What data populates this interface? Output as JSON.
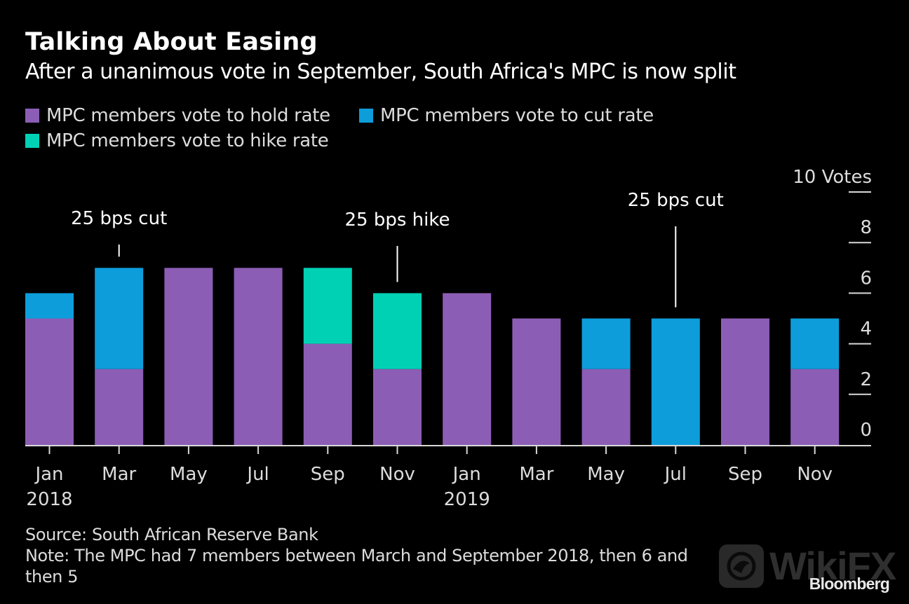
{
  "header": {
    "title": "Talking About Easing",
    "subtitle": "After a unanimous vote in September, South Africa's MPC is now split"
  },
  "legend": [
    {
      "label": "MPC members vote to hold rate",
      "color": "#8c5db5",
      "key": "hold"
    },
    {
      "label": "MPC members vote to cut rate",
      "color": "#0d9ddb",
      "key": "cut"
    },
    {
      "label": "MPC members vote to hike rate",
      "color": "#00d1b5",
      "key": "hike"
    }
  ],
  "footer": {
    "source": "Source: South African Reserve Bank",
    "note": "Note: The MPC had 7 members between March and September 2018, then 6 and then 5",
    "brand": "Bloomberg",
    "watermark": "WikiFX"
  },
  "chart_data": {
    "type": "bar",
    "stacked": true,
    "title": "Talking About Easing",
    "subtitle": "After a unanimous vote in September, South Africa's MPC is now split",
    "categories": [
      "Jan 2018",
      "Mar 2018",
      "May 2018",
      "Jul 2018",
      "Sep 2018",
      "Nov 2018",
      "Jan 2019",
      "Mar 2019",
      "May 2019",
      "Jul 2019",
      "Sep 2019",
      "Nov 2019"
    ],
    "tick_labels": [
      {
        "month": "Jan",
        "year": "2018"
      },
      {
        "month": "Mar",
        "year": ""
      },
      {
        "month": "May",
        "year": ""
      },
      {
        "month": "Jul",
        "year": ""
      },
      {
        "month": "Sep",
        "year": ""
      },
      {
        "month": "Nov",
        "year": ""
      },
      {
        "month": "Jan",
        "year": "2019"
      },
      {
        "month": "Mar",
        "year": ""
      },
      {
        "month": "May",
        "year": ""
      },
      {
        "month": "Jul",
        "year": ""
      },
      {
        "month": "Sep",
        "year": ""
      },
      {
        "month": "Nov",
        "year": ""
      }
    ],
    "series": [
      {
        "name": "MPC members vote to hold rate",
        "key": "hold",
        "color": "#8c5db5",
        "values": [
          5,
          3,
          7,
          7,
          4,
          3,
          6,
          5,
          3,
          0,
          5,
          3
        ]
      },
      {
        "name": "MPC members vote to cut rate",
        "key": "cut",
        "color": "#0d9ddb",
        "values": [
          1,
          4,
          0,
          0,
          0,
          0,
          0,
          0,
          2,
          5,
          0,
          2
        ]
      },
      {
        "name": "MPC members vote to hike rate",
        "key": "hike",
        "color": "#00d1b5",
        "values": [
          0,
          0,
          0,
          0,
          3,
          3,
          0,
          0,
          0,
          0,
          0,
          0
        ]
      }
    ],
    "annotations": [
      {
        "index": 1,
        "text": "25 bps cut"
      },
      {
        "index": 5,
        "text": "25 bps hike"
      },
      {
        "index": 9,
        "text": "25 bps cut"
      }
    ],
    "yaxis": {
      "label": "Votes",
      "ticks": [
        0,
        2,
        4,
        6,
        8,
        10
      ],
      "top_tick_label": "10 Votes",
      "position": "right"
    },
    "xlabel": "",
    "ylabel": "Votes",
    "ylim": [
      0,
      10
    ],
    "grid": false,
    "legend_position": "top-left"
  }
}
